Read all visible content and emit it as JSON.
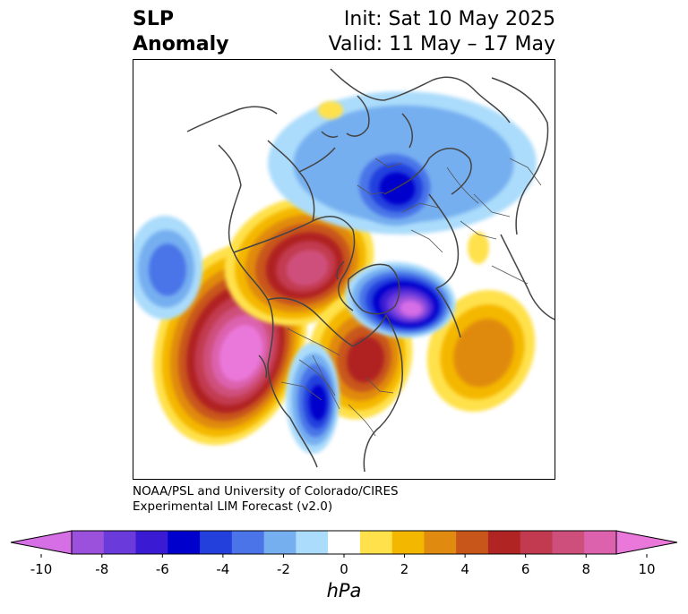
{
  "title": {
    "left_line1": "SLP",
    "left_line2": "Anomaly",
    "right_line1": "Init: Sat 10 May 2025",
    "right_line2": "Valid: 11 May – 17 May"
  },
  "credit": {
    "line1": "NOAA/PSL and University of Colorado/CIRES",
    "line2": "Experimental LIM Forecast (v2.0)"
  },
  "colorbar": {
    "units": "hPa",
    "tick_labels": [
      "-10",
      "-8",
      "-6",
      "-4",
      "-2",
      "0",
      "2",
      "4",
      "6",
      "8",
      "10"
    ],
    "colors": [
      "#d66ee6",
      "#9c51dc",
      "#6a3adb",
      "#3b1ad4",
      "#0000cd",
      "#2340dd",
      "#4a74e8",
      "#76aff0",
      "#abdcfb",
      "#ffffff",
      "#ffe14b",
      "#f4b700",
      "#e08a10",
      "#c8561a",
      "#b02424",
      "#c23a50",
      "#cf4f7c",
      "#dc62ae",
      "#ea78db"
    ]
  },
  "map": {
    "projection": "north-polar-stereographic",
    "anomalies": [
      {
        "name": "north-pacific-high",
        "sign": "positive",
        "peak_hpa": 10
      },
      {
        "name": "western-canada-high",
        "sign": "positive",
        "peak_hpa": 7
      },
      {
        "name": "great-lakes-high",
        "sign": "positive",
        "peak_hpa": 6
      },
      {
        "name": "north-atlantic-high",
        "sign": "positive",
        "peak_hpa": 5
      },
      {
        "name": "arctic-low",
        "sign": "negative",
        "peak_hpa": -6
      },
      {
        "name": "greenland-europe-low",
        "sign": "negative",
        "peak_hpa": -10
      },
      {
        "name": "western-us-low",
        "sign": "negative",
        "peak_hpa": -5
      },
      {
        "name": "north-pacific-low",
        "sign": "negative",
        "peak_hpa": -4
      }
    ]
  }
}
